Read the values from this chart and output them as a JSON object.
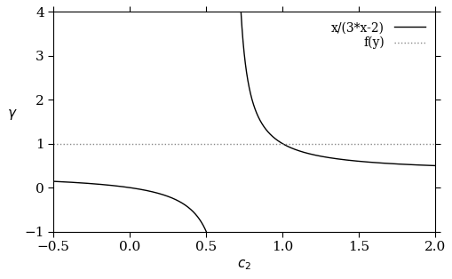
{
  "title": "",
  "xlabel": "$c_2$",
  "ylabel": "$\\gamma$",
  "xlim": [
    -0.5,
    2.0
  ],
  "ylim": [
    -1.0,
    4.0
  ],
  "horizontal_line_y": 1.0,
  "line_color": "#000000",
  "dotted_color": "#888888",
  "legend_entries": [
    "x/(3*x-2)",
    "f(y)"
  ],
  "figsize": [
    5.1,
    3.14
  ],
  "dpi": 100
}
